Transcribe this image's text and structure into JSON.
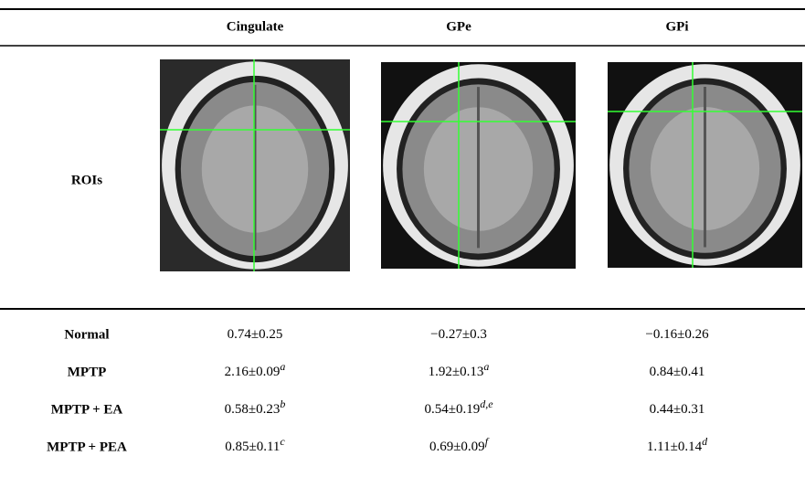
{
  "table": {
    "header": [
      "Cingulate",
      "GPe",
      "GPi"
    ],
    "roi_label": "ROIs",
    "rows": [
      {
        "label": "Normal",
        "cells": [
          {
            "value": "0.74±0.25"
          },
          {
            "value": "−0.27±0.3"
          },
          {
            "value": "−0.16±0.26"
          }
        ]
      },
      {
        "label": "MPTP",
        "cells": [
          {
            "value": "2.16±0.09",
            "sup": "a"
          },
          {
            "value": "1.92±0.13",
            "sup": "a"
          },
          {
            "value": "0.84±0.41"
          }
        ]
      },
      {
        "label": "MPTP + EA",
        "cells": [
          {
            "value": "0.58±0.23",
            "sup": "b"
          },
          {
            "value": "0.54±0.19",
            "sup": "d,e"
          },
          {
            "value": "0.44±0.31"
          }
        ]
      },
      {
        "label": "MPTP + PEA",
        "cells": [
          {
            "value": "0.85±0.11",
            "sup": "c"
          },
          {
            "value": "0.69±0.09",
            "sup": "f"
          },
          {
            "value": "1.11±0.14",
            "sup": "d"
          }
        ]
      }
    ]
  }
}
